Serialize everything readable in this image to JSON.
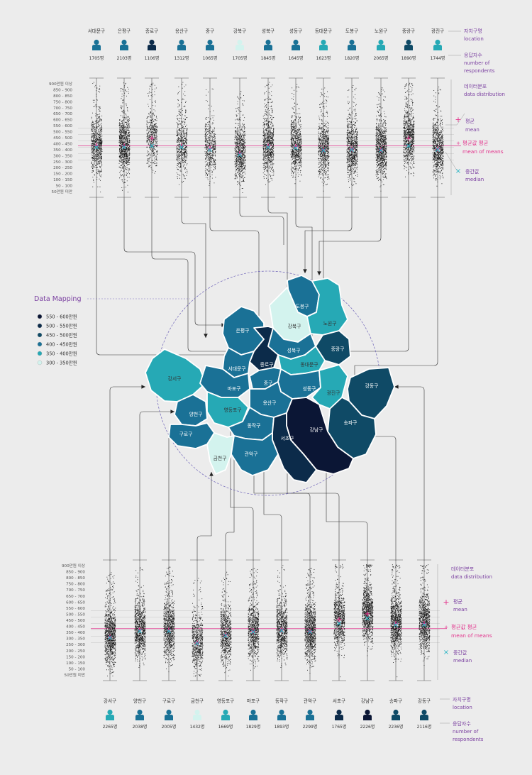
{
  "scale_labels": [
    "900만원 이상",
    "850 - 900",
    "800 - 850",
    "750 - 800",
    "700 - 750",
    "650 - 700",
    "600 - 650",
    "550 - 600",
    "500 - 550",
    "450 - 500",
    "400 - 450",
    "350 - 400",
    "300 - 350",
    "250 - 300",
    "200 - 250",
    "150 - 200",
    "100 - 150",
    "50 - 100",
    "50만원 미만"
  ],
  "top_districts": [
    {
      "name": "서대문구",
      "count": "1705명",
      "level": 3,
      "mean": 415,
      "median": 400
    },
    {
      "name": "은평구",
      "count": "2103명",
      "level": 3,
      "mean": 410,
      "median": 400
    },
    {
      "name": "종로구",
      "count": "1106명",
      "level": 5,
      "mean": 470,
      "median": 410
    },
    {
      "name": "용산구",
      "count": "1312명",
      "level": 3,
      "mean": 410,
      "median": 400
    },
    {
      "name": "중구",
      "count": "1065명",
      "level": 3,
      "mean": 390,
      "median": 380
    },
    {
      "name": "강북구",
      "count": "1705명",
      "level": 1,
      "mean": 350,
      "median": 340
    },
    {
      "name": "성북구",
      "count": "1845명",
      "level": 3,
      "mean": 410,
      "median": 400
    },
    {
      "name": "성동구",
      "count": "1645명",
      "level": 3,
      "mean": 405,
      "median": 395
    },
    {
      "name": "동대문구",
      "count": "1623명",
      "level": 2,
      "mean": 380,
      "median": 375
    },
    {
      "name": "도봉구",
      "count": "1820명",
      "level": 3,
      "mean": 385,
      "median": 380
    },
    {
      "name": "노원구",
      "count": "2065명",
      "level": 2,
      "mean": 380,
      "median": 375
    },
    {
      "name": "중랑구",
      "count": "1890명",
      "level": 4,
      "mean": 470,
      "median": 410
    },
    {
      "name": "광진구",
      "count": "1744명",
      "level": 2,
      "mean": 385,
      "median": 380
    }
  ],
  "bottom_districts": [
    {
      "name": "강서구",
      "count": "2265명",
      "level": 2,
      "mean": 345,
      "median": 340
    },
    {
      "name": "양천구",
      "count": "2038명",
      "level": 3,
      "mean": 400,
      "median": 390
    },
    {
      "name": "구로구",
      "count": "2005명",
      "level": 3,
      "mean": 400,
      "median": 390
    },
    {
      "name": "금천구",
      "count": "1432명",
      "level": 1,
      "mean": 300,
      "median": 295
    },
    {
      "name": "영등포구",
      "count": "1669명",
      "level": 2,
      "mean": 360,
      "median": 355
    },
    {
      "name": "마포구",
      "count": "1829명",
      "level": 3,
      "mean": 390,
      "median": 385
    },
    {
      "name": "동작구",
      "count": "1893명",
      "level": 3,
      "mean": 400,
      "median": 395
    },
    {
      "name": "관악구",
      "count": "2299명",
      "level": 3,
      "mean": 390,
      "median": 385
    },
    {
      "name": "서초구",
      "count": "1765명",
      "level": 5,
      "mean": 480,
      "median": 450
    },
    {
      "name": "강남구",
      "count": "2226명",
      "level": 6,
      "mean": 525,
      "median": 490
    },
    {
      "name": "송파구",
      "count": "2236명",
      "level": 4,
      "mean": 450,
      "median": 440
    },
    {
      "name": "강동구",
      "count": "2116명",
      "level": 4,
      "mean": 450,
      "median": 440
    }
  ],
  "side_labels": {
    "location_ko": "자치구명",
    "location_en": "location",
    "resp_ko": "응답자수",
    "resp_en1": "number of",
    "resp_en2": "respondents",
    "dist_ko": "데이터분포",
    "dist_en": "data distribution",
    "mean_ko": "평균",
    "mean_en": "mean",
    "mom_ko": "평균값 평균",
    "mom_en": "mean of means",
    "median_ko": "중간값",
    "median_en": "median"
  },
  "mapping_label": "Data Mapping",
  "legend": [
    {
      "label": "550 - 600만원",
      "color": "#0b1635"
    },
    {
      "label": "500 - 550만원",
      "color": "#0c2b4a"
    },
    {
      "label": "450 - 500만원",
      "color": "#0f4a66"
    },
    {
      "label": "400 - 450만원",
      "color": "#1a7196"
    },
    {
      "label": "350 - 400만원",
      "color": "#26a9b5"
    },
    {
      "label": "300 - 350만원",
      "color": "#d3f3ee"
    }
  ],
  "map_labels": [
    {
      "name": "도봉구",
      "level": 3
    },
    {
      "name": "강북구",
      "level": 1
    },
    {
      "name": "노원구",
      "level": 2
    },
    {
      "name": "은평구",
      "level": 3
    },
    {
      "name": "성북구",
      "level": 3
    },
    {
      "name": "중랑구",
      "level": 4
    },
    {
      "name": "종로구",
      "level": 5
    },
    {
      "name": "서대문구",
      "level": 3
    },
    {
      "name": "동대문구",
      "level": 2
    },
    {
      "name": "강서구",
      "level": 2
    },
    {
      "name": "마포구",
      "level": 3
    },
    {
      "name": "중구",
      "level": 3
    },
    {
      "name": "성동구",
      "level": 3
    },
    {
      "name": "광진구",
      "level": 2
    },
    {
      "name": "강동구",
      "level": 4
    },
    {
      "name": "양천구",
      "level": 3
    },
    {
      "name": "영등포구",
      "level": 2
    },
    {
      "name": "용산구",
      "level": 3
    },
    {
      "name": "구로구",
      "level": 3
    },
    {
      "name": "동작구",
      "level": 3
    },
    {
      "name": "송파구",
      "level": 4
    },
    {
      "name": "강남구",
      "level": 6
    },
    {
      "name": "서초구",
      "level": 5
    },
    {
      "name": "금천구",
      "level": 1
    },
    {
      "name": "관악구",
      "level": 3
    }
  ],
  "colors": {
    "accent": "#e2318b",
    "median": "#2bb4c4",
    "mom_line": "#e2318b",
    "side_text": "#7a3fa0"
  }
}
